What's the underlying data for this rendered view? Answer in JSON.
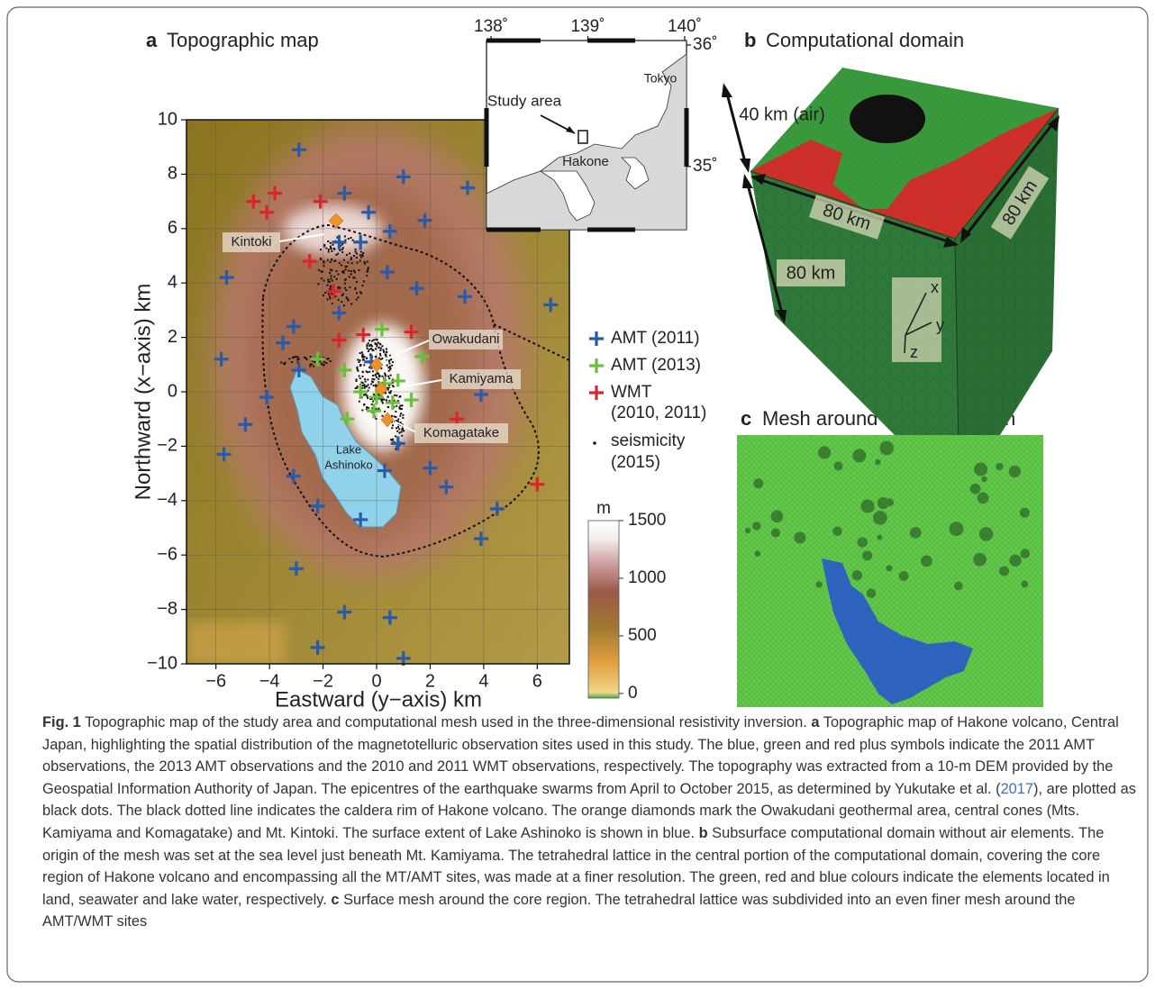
{
  "panel_a": {
    "label": "a",
    "title": "Topographic map",
    "xlabel": "Eastward (y−axis) km",
    "ylabel": "Northward (x−axis) km",
    "xlim": [
      -7.1,
      7.2
    ],
    "ylim": [
      -10,
      10
    ],
    "xticks": [
      {
        "value": -6,
        "label": "−6"
      },
      {
        "value": -4,
        "label": "−4"
      },
      {
        "value": -2,
        "label": "−2"
      },
      0,
      2,
      4,
      6
    ],
    "yticks": [
      {
        "value": -10,
        "label": "−10"
      },
      {
        "value": -8,
        "label": "−8"
      },
      {
        "value": -6,
        "label": "−6"
      },
      {
        "value": -4,
        "label": "−4"
      },
      {
        "value": -2,
        "label": "−2"
      },
      0,
      2,
      4,
      6,
      8,
      10
    ],
    "grid": true,
    "places": [
      "Kintoki",
      "Owakudani",
      "Kamiyama",
      "Komagatake"
    ],
    "lake_label_lines": [
      "Lake",
      "Ashinoko"
    ],
    "series": [
      {
        "name_lines": [
          "AMT (2011)"
        ],
        "color": "#2a5aa8",
        "x": [
          -2.9,
          1.0,
          3.4,
          -1.2,
          -0.3,
          1.8,
          0.5,
          -0.6,
          -1.4,
          -5.6,
          0.4,
          1.5,
          3.3,
          6.5,
          -1.4,
          -3.1,
          -3.5,
          -0.2,
          -5.8,
          -2.9,
          3.9,
          -4.1,
          -4.9,
          -5.7,
          0.8,
          0.3,
          2.0,
          -3.1,
          2.6,
          -2.2,
          4.5,
          -0.6,
          3.9,
          -3.0,
          -1.2,
          0.5,
          -2.2,
          1.0
        ],
        "y": [
          8.9,
          7.9,
          7.5,
          7.3,
          6.6,
          6.3,
          5.9,
          5.5,
          5.5,
          4.2,
          4.4,
          3.8,
          3.5,
          3.2,
          2.9,
          2.4,
          1.8,
          1.1,
          1.2,
          0.8,
          -0.1,
          -0.2,
          -1.2,
          -2.3,
          -1.9,
          -2.9,
          -2.8,
          -3.1,
          -3.5,
          -4.2,
          -4.3,
          -4.7,
          -5.4,
          -6.5,
          -8.1,
          -8.3,
          -9.4,
          -9.8
        ]
      },
      {
        "name_lines": [
          "AMT (2013)"
        ],
        "color": "#6cbf3a",
        "x": [
          0.2,
          -2.2,
          -1.2,
          1.7,
          -0.6,
          0.0,
          0.3,
          0.8,
          0.6,
          1.3,
          -1.1,
          -0.1
        ],
        "y": [
          2.3,
          1.2,
          0.8,
          1.3,
          0.0,
          -0.2,
          0.3,
          0.4,
          -0.4,
          -0.3,
          -1.0,
          -0.7
        ]
      },
      {
        "name_lines": [
          "WMT",
          "(2010, 2011)"
        ],
        "color": "#d8262a",
        "x": [
          -4.6,
          -3.8,
          -4.1,
          -2.1,
          -2.5,
          -1.6,
          -1.4,
          -0.5,
          1.3,
          3.0,
          6.0
        ],
        "y": [
          7.0,
          7.3,
          6.6,
          7.0,
          4.8,
          3.7,
          1.9,
          2.1,
          2.2,
          -1.0,
          -3.4
        ]
      }
    ],
    "seismicity_label_lines": [
      "seismicity",
      "(2015)"
    ],
    "colorbar": {
      "unit": "m",
      "lim": [
        -40,
        1500
      ],
      "ticks": [
        0,
        500,
        1000,
        1500
      ]
    },
    "inset": {
      "xlim": [
        137.953,
        140.019
      ],
      "ylim": [
        34.48,
        36.037
      ],
      "xticks": [
        {
          "value": 138,
          "label": "138˚"
        },
        {
          "value": 139,
          "label": "139˚"
        },
        {
          "value": 140,
          "label": "140˚"
        }
      ],
      "yticks": [
        {
          "value": 35,
          "label": "35˚"
        },
        {
          "value": 36,
          "label": "36˚"
        }
      ],
      "labels": [
        "Study area",
        "Hakone",
        "Tokyo"
      ]
    }
  },
  "panel_b": {
    "label": "b",
    "title": "Computational domain",
    "dimensions": [
      "40 km (air)",
      "80 km",
      "80 km",
      "80 km"
    ],
    "axes": [
      "x",
      "y",
      "z"
    ]
  },
  "panel_c": {
    "label": "c",
    "title": "Mesh around the core region"
  },
  "caption": [
    {
      "text": "Fig. 1",
      "style": "bold"
    },
    {
      "text": " Topographic map of the study area and computational mesh used in the three-dimensional resistivity inversion. ",
      "style": "plain"
    },
    {
      "text": "a",
      "style": "bold"
    },
    {
      "text": " Topographic map of Hakone volcano, Central Japan, highlighting the spatial distribution of the magnetotelluric observation sites used in this study. The blue, green and red plus symbols indicate the 2011 AMT observations, the 2013 AMT observations and the 2010 and 2011 WMT observations, respectively. The topography was extracted from a 10-m DEM provided by the Geospatial Information Authority of Japan. The epicentres of the earthquake swarms from April to October 2015, as determined by Yukutake et al. (",
      "style": "plain"
    },
    {
      "text": "2017",
      "style": "link"
    },
    {
      "text": "), are plotted as black dots. The black dotted line indicates the caldera rim of Hakone volcano. The orange diamonds mark the Owakudani geothermal area, central cones (Mts. Kamiyama and Komagatake) and Mt. Kintoki. The surface extent of Lake Ashinoko is shown in blue. ",
      "style": "plain"
    },
    {
      "text": "b",
      "style": "bold"
    },
    {
      "text": " Subsurface computational domain without air elements. The origin of the mesh was set at the sea level just beneath Mt. Kamiyama. The tetrahedral lattice in the central portion of the computational domain, covering the core region of Hakone volcano and encompassing all the MT/AMT sites, was made at a finer resolution. The green, red and blue colours indicate the elements located in land, seawater and lake water, respectively. ",
      "style": "plain"
    },
    {
      "text": "c",
      "style": "bold"
    },
    {
      "text": " Surface mesh around the core region. The tetrahedral lattice was subdivided into an even finer mesh around the AMT/WMT sites",
      "style": "plain"
    }
  ]
}
